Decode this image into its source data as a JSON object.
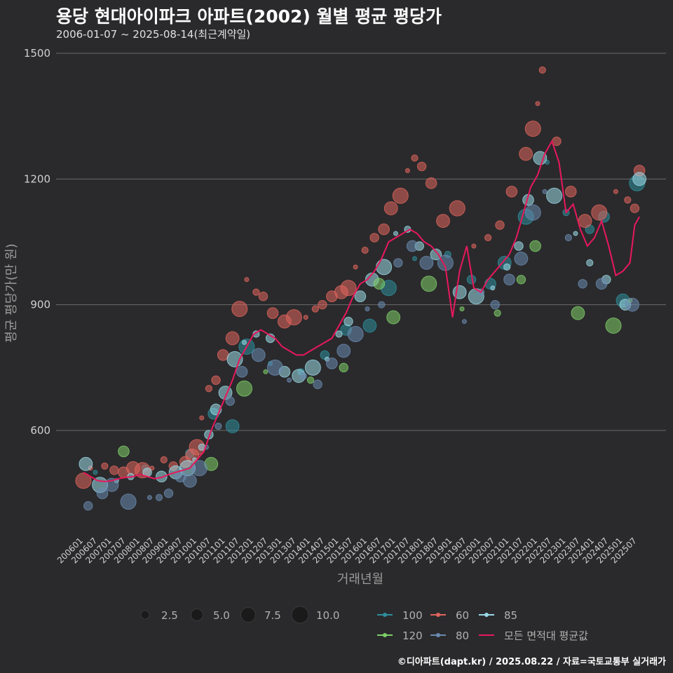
{
  "chart_data": {
    "type": "scatter",
    "title": "용당 현대아이파크 아파트(2002) 월별 평균 평당가",
    "subtitle": "2006-01-07 ~ 2025-08-14(최근계약일)",
    "caption": "©디아파트(dapt.kr) / 2025.08.22 / 자료=국토교통부 실거래가",
    "xlabel": "거래년월",
    "ylabel": "평균 평당가(만 원)",
    "ylim": [
      370,
      1500
    ],
    "y_ticks": [
      600,
      900,
      1200,
      1500
    ],
    "grid": true,
    "legend_placement": "bottom",
    "x_ticks": [
      "200601",
      "200607",
      "200701",
      "200707",
      "200801",
      "200807",
      "200901",
      "200907",
      "201001",
      "201007",
      "201101",
      "201107",
      "201201",
      "201207",
      "201301",
      "201307",
      "201401",
      "201407",
      "201501",
      "201507",
      "201601",
      "201607",
      "201701",
      "201707",
      "201801",
      "201807",
      "201901",
      "201907",
      "202001",
      "202007",
      "202101",
      "202107",
      "202201",
      "202207",
      "202301",
      "202307",
      "202401",
      "202407",
      "202501",
      "202507"
    ],
    "size_legend": {
      "values": [
        2.5,
        5.0,
        7.5,
        10.0
      ],
      "labels": [
        "2.5",
        "5.0",
        "7.5",
        "10.0"
      ]
    },
    "series": [
      {
        "name": "100",
        "color": "#2e8e9c",
        "points": [
          [
            "2006-06",
            500
          ],
          [
            "2008-03",
            510
          ],
          [
            "2009-10",
            545
          ],
          [
            "2010-08",
            640
          ],
          [
            "2011-04",
            610
          ],
          [
            "2011-10",
            800
          ],
          [
            "2012-08",
            760
          ],
          [
            "2013-09",
            740
          ],
          [
            "2014-07",
            780
          ],
          [
            "2015-04",
            840
          ],
          [
            "2016-02",
            850
          ],
          [
            "2016-10",
            940
          ],
          [
            "2017-09",
            1010
          ],
          [
            "2018-11",
            1020
          ],
          [
            "2019-09",
            960
          ],
          [
            "2020-05",
            950
          ],
          [
            "2020-11",
            1000
          ],
          [
            "2021-08",
            1110
          ],
          [
            "2022-05",
            1240
          ],
          [
            "2023-01",
            1120
          ],
          [
            "2023-11",
            1080
          ],
          [
            "2024-05",
            1110
          ],
          [
            "2025-01",
            910
          ],
          [
            "2025-07",
            1190
          ]
        ]
      },
      {
        "name": "60",
        "color": "#e0645c",
        "points": [
          [
            "2006-01",
            480
          ],
          [
            "2006-04",
            510
          ],
          [
            "2006-10",
            515
          ],
          [
            "2007-02",
            505
          ],
          [
            "2007-06",
            500
          ],
          [
            "2007-10",
            510
          ],
          [
            "2008-02",
            505
          ],
          [
            "2008-06",
            510
          ],
          [
            "2008-11",
            530
          ],
          [
            "2009-03",
            515
          ],
          [
            "2009-08",
            525
          ],
          [
            "2009-11",
            540
          ],
          [
            "2010-01",
            560
          ],
          [
            "2010-03",
            630
          ],
          [
            "2010-06",
            700
          ],
          [
            "2010-09",
            720
          ],
          [
            "2010-12",
            780
          ],
          [
            "2011-04",
            820
          ],
          [
            "2011-07",
            890
          ],
          [
            "2011-10",
            960
          ],
          [
            "2012-02",
            930
          ],
          [
            "2012-05",
            920
          ],
          [
            "2012-09",
            880
          ],
          [
            "2013-02",
            860
          ],
          [
            "2013-06",
            870
          ],
          [
            "2013-11",
            870
          ],
          [
            "2014-03",
            890
          ],
          [
            "2014-06",
            900
          ],
          [
            "2014-10",
            920
          ],
          [
            "2015-02",
            930
          ],
          [
            "2015-05",
            940
          ],
          [
            "2015-08",
            990
          ],
          [
            "2015-12",
            1030
          ],
          [
            "2016-04",
            1060
          ],
          [
            "2016-08",
            1080
          ],
          [
            "2016-11",
            1130
          ],
          [
            "2017-03",
            1160
          ],
          [
            "2017-06",
            1220
          ],
          [
            "2017-09",
            1250
          ],
          [
            "2017-12",
            1230
          ],
          [
            "2018-04",
            1190
          ],
          [
            "2018-09",
            1100
          ],
          [
            "2019-03",
            1130
          ],
          [
            "2019-10",
            1040
          ],
          [
            "2020-04",
            1060
          ],
          [
            "2020-09",
            1090
          ],
          [
            "2021-02",
            1170
          ],
          [
            "2021-08",
            1260
          ],
          [
            "2021-11",
            1320
          ],
          [
            "2022-01",
            1380
          ],
          [
            "2022-03",
            1460
          ],
          [
            "2022-09",
            1290
          ],
          [
            "2023-03",
            1170
          ],
          [
            "2023-09",
            1100
          ],
          [
            "2024-03",
            1120
          ],
          [
            "2024-10",
            1170
          ],
          [
            "2025-03",
            1150
          ],
          [
            "2025-06",
            1130
          ],
          [
            "2025-08",
            1220
          ]
        ]
      },
      {
        "name": "85",
        "color": "#9ad8e6",
        "points": [
          [
            "2006-02",
            520
          ],
          [
            "2006-08",
            470
          ],
          [
            "2007-03",
            480
          ],
          [
            "2007-09",
            490
          ],
          [
            "2008-04",
            500
          ],
          [
            "2008-10",
            490
          ],
          [
            "2009-04",
            500
          ],
          [
            "2009-09",
            510
          ],
          [
            "2009-12",
            530
          ],
          [
            "2010-03",
            560
          ],
          [
            "2010-06",
            590
          ],
          [
            "2010-09",
            650
          ],
          [
            "2011-01",
            690
          ],
          [
            "2011-05",
            770
          ],
          [
            "2011-09",
            810
          ],
          [
            "2012-02",
            830
          ],
          [
            "2012-08",
            820
          ],
          [
            "2013-02",
            740
          ],
          [
            "2013-08",
            730
          ],
          [
            "2014-02",
            750
          ],
          [
            "2014-08",
            770
          ],
          [
            "2015-01",
            830
          ],
          [
            "2015-05",
            860
          ],
          [
            "2015-10",
            920
          ],
          [
            "2016-03",
            960
          ],
          [
            "2016-08",
            990
          ],
          [
            "2017-01",
            1070
          ],
          [
            "2017-06",
            1080
          ],
          [
            "2017-11",
            1040
          ],
          [
            "2018-06",
            1020
          ],
          [
            "2019-04",
            930
          ],
          [
            "2019-11",
            920
          ],
          [
            "2020-06",
            940
          ],
          [
            "2020-12",
            990
          ],
          [
            "2021-05",
            1040
          ],
          [
            "2021-09",
            1150
          ],
          [
            "2022-02",
            1250
          ],
          [
            "2022-08",
            1160
          ],
          [
            "2023-05",
            1070
          ],
          [
            "2023-11",
            1000
          ],
          [
            "2024-06",
            960
          ],
          [
            "2025-02",
            900
          ],
          [
            "2025-08",
            1200
          ]
        ]
      },
      {
        "name": "120",
        "color": "#7fcf6a",
        "points": [
          [
            "2007-06",
            550
          ],
          [
            "2010-07",
            520
          ],
          [
            "2011-09",
            700
          ],
          [
            "2012-06",
            740
          ],
          [
            "2014-01",
            720
          ],
          [
            "2015-03",
            750
          ],
          [
            "2016-06",
            950
          ],
          [
            "2016-12",
            870
          ],
          [
            "2018-03",
            950
          ],
          [
            "2019-05",
            890
          ],
          [
            "2020-08",
            880
          ],
          [
            "2021-06",
            960
          ],
          [
            "2021-12",
            1040
          ],
          [
            "2023-06",
            880
          ],
          [
            "2024-09",
            850
          ],
          [
            "2025-04",
            910
          ]
        ]
      },
      {
        "name": "80",
        "color": "#6a8ab0",
        "points": [
          [
            "2006-03",
            420
          ],
          [
            "2006-09",
            450
          ],
          [
            "2007-01",
            470
          ],
          [
            "2007-08",
            430
          ],
          [
            "2008-05",
            440
          ],
          [
            "2008-09",
            440
          ],
          [
            "2009-01",
            450
          ],
          [
            "2009-06",
            490
          ],
          [
            "2009-10",
            480
          ],
          [
            "2010-02",
            510
          ],
          [
            "2010-05",
            560
          ],
          [
            "2010-10",
            610
          ],
          [
            "2011-03",
            670
          ],
          [
            "2011-08",
            740
          ],
          [
            "2012-03",
            780
          ],
          [
            "2012-10",
            750
          ],
          [
            "2013-04",
            720
          ],
          [
            "2013-10",
            730
          ],
          [
            "2014-04",
            710
          ],
          [
            "2014-10",
            760
          ],
          [
            "2015-03",
            790
          ],
          [
            "2015-08",
            830
          ],
          [
            "2016-01",
            890
          ],
          [
            "2016-07",
            900
          ],
          [
            "2017-02",
            1000
          ],
          [
            "2017-08",
            1040
          ],
          [
            "2018-02",
            1000
          ],
          [
            "2018-10",
            1000
          ],
          [
            "2019-06",
            860
          ],
          [
            "2020-01",
            930
          ],
          [
            "2020-07",
            900
          ],
          [
            "2021-01",
            960
          ],
          [
            "2021-06",
            1010
          ],
          [
            "2021-11",
            1120
          ],
          [
            "2022-04",
            1170
          ],
          [
            "2023-02",
            1060
          ],
          [
            "2023-08",
            950
          ],
          [
            "2024-04",
            950
          ],
          [
            "2025-05",
            900
          ]
        ]
      }
    ],
    "average_series": {
      "name": "모든 면적대 평균값",
      "color": "#e8185c",
      "points": [
        [
          "2006-01",
          500
        ],
        [
          "2006-04",
          490
        ],
        [
          "2006-07",
          480
        ],
        [
          "2006-10",
          478
        ],
        [
          "2007-01",
          480
        ],
        [
          "2007-04",
          485
        ],
        [
          "2007-07",
          488
        ],
        [
          "2007-10",
          490
        ],
        [
          "2008-01",
          495
        ],
        [
          "2008-04",
          490
        ],
        [
          "2008-07",
          485
        ],
        [
          "2008-10",
          488
        ],
        [
          "2009-01",
          495
        ],
        [
          "2009-04",
          500
        ],
        [
          "2009-07",
          505
        ],
        [
          "2009-10",
          510
        ],
        [
          "2010-01",
          530
        ],
        [
          "2010-04",
          550
        ],
        [
          "2010-07",
          600
        ],
        [
          "2010-10",
          640
        ],
        [
          "2011-01",
          680
        ],
        [
          "2011-04",
          720
        ],
        [
          "2011-07",
          770
        ],
        [
          "2011-10",
          800
        ],
        [
          "2012-01",
          830
        ],
        [
          "2012-04",
          840
        ],
        [
          "2012-07",
          830
        ],
        [
          "2012-10",
          820
        ],
        [
          "2013-01",
          800
        ],
        [
          "2013-04",
          790
        ],
        [
          "2013-07",
          780
        ],
        [
          "2013-10",
          780
        ],
        [
          "2014-01",
          790
        ],
        [
          "2014-04",
          800
        ],
        [
          "2014-07",
          810
        ],
        [
          "2014-10",
          820
        ],
        [
          "2015-01",
          850
        ],
        [
          "2015-04",
          880
        ],
        [
          "2015-07",
          920
        ],
        [
          "2015-10",
          950
        ],
        [
          "2016-01",
          960
        ],
        [
          "2016-04",
          980
        ],
        [
          "2016-07",
          1010
        ],
        [
          "2016-10",
          1050
        ],
        [
          "2017-01",
          1060
        ],
        [
          "2017-04",
          1070
        ],
        [
          "2017-07",
          1080
        ],
        [
          "2017-10",
          1070
        ],
        [
          "2018-01",
          1050
        ],
        [
          "2018-04",
          1040
        ],
        [
          "2018-07",
          1020
        ],
        [
          "2018-10",
          990
        ],
        [
          "2019-01",
          870
        ],
        [
          "2019-04",
          980
        ],
        [
          "2019-07",
          1040
        ],
        [
          "2019-10",
          940
        ],
        [
          "2020-01",
          930
        ],
        [
          "2020-04",
          960
        ],
        [
          "2020-07",
          980
        ],
        [
          "2020-10",
          1000
        ],
        [
          "2021-01",
          1020
        ],
        [
          "2021-04",
          1060
        ],
        [
          "2021-07",
          1120
        ],
        [
          "2021-10",
          1180
        ],
        [
          "2022-01",
          1210
        ],
        [
          "2022-04",
          1260
        ],
        [
          "2022-07",
          1290
        ],
        [
          "2022-10",
          1240
        ],
        [
          "2023-01",
          1120
        ],
        [
          "2023-04",
          1140
        ],
        [
          "2023-07",
          1080
        ],
        [
          "2023-10",
          1040
        ],
        [
          "2024-01",
          1060
        ],
        [
          "2024-04",
          1100
        ],
        [
          "2024-07",
          1040
        ],
        [
          "2024-10",
          970
        ],
        [
          "2025-01",
          980
        ],
        [
          "2025-04",
          1000
        ],
        [
          "2025-06",
          1090
        ],
        [
          "2025-08",
          1110
        ]
      ]
    }
  }
}
